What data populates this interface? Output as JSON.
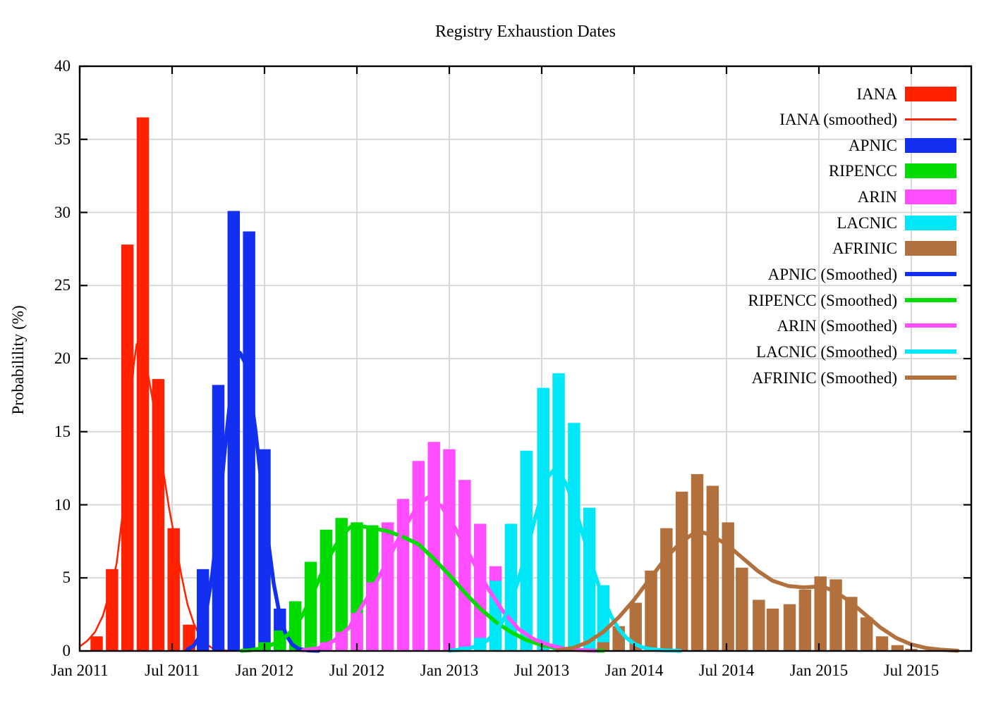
{
  "chart_data": {
    "type": "bar",
    "title": "Registry Exhaustion Dates",
    "ylabel": "Probabilility (%)",
    "x_unit": "months since Jan 2011",
    "ylim": [
      0,
      40
    ],
    "y_tick_step": 5,
    "y_ticks": [
      0,
      5,
      10,
      15,
      20,
      25,
      30,
      35,
      40
    ],
    "x_ticks": [
      {
        "m": 0,
        "label": "Jan 2011"
      },
      {
        "m": 6,
        "label": "Jul 2011"
      },
      {
        "m": 12,
        "label": "Jan 2012"
      },
      {
        "m": 18,
        "label": "Jul 2012"
      },
      {
        "m": 24,
        "label": "Jan 2013"
      },
      {
        "m": 30,
        "label": "Jul 2013"
      },
      {
        "m": 36,
        "label": "Jan 2014"
      },
      {
        "m": 42,
        "label": "Jul 2014"
      },
      {
        "m": 48,
        "label": "Jan 2015"
      },
      {
        "m": 54,
        "label": "Jul 2015"
      }
    ],
    "grid": true,
    "legend_position": "top-right-inside",
    "bar_width_months": 0.8,
    "colors": {
      "IANA": "#ff2100",
      "APNIC": "#1330f0",
      "RIPENCC": "#00dc00",
      "ARIN": "#ff4dff",
      "LACNIC": "#00e7f7",
      "AFRINIC": "#b2703d",
      "grid": "#d4d4d4",
      "frame": "#000000"
    },
    "series": [
      {
        "name": "IANA",
        "kind": "bars",
        "color": "#ff2100",
        "bars": [
          [
            1.1,
            1.0
          ],
          [
            2.1,
            5.6
          ],
          [
            3.1,
            27.8
          ],
          [
            4.1,
            36.5
          ],
          [
            5.1,
            18.6
          ],
          [
            6.1,
            8.4
          ],
          [
            7.1,
            1.8
          ]
        ]
      },
      {
        "name": "IANA (smoothed)",
        "kind": "line",
        "color": "#ff2100",
        "line_width": 2.5,
        "points": [
          [
            0,
            0.3
          ],
          [
            0.5,
            0.7
          ],
          [
            1,
            1.3
          ],
          [
            1.5,
            2.4
          ],
          [
            2,
            4.2
          ],
          [
            2.4,
            6.0
          ],
          [
            2.8,
            9.5
          ],
          [
            3.2,
            15.0
          ],
          [
            3.5,
            19.5
          ],
          [
            3.7,
            21.0
          ],
          [
            4.0,
            20.6
          ],
          [
            4.3,
            19.7
          ],
          [
            4.6,
            18.0
          ],
          [
            5.0,
            15.5
          ],
          [
            5.4,
            12.5
          ],
          [
            5.8,
            9.8
          ],
          [
            6.2,
            7.5
          ],
          [
            6.6,
            5.2
          ],
          [
            7.0,
            3.2
          ],
          [
            7.4,
            1.9
          ],
          [
            7.8,
            1.0
          ],
          [
            8.2,
            0.5
          ],
          [
            8.6,
            0.2
          ],
          [
            9.0,
            0.1
          ],
          [
            9.5,
            0.04
          ],
          [
            10.5,
            0.01
          ]
        ]
      },
      {
        "name": "APNIC",
        "kind": "bars",
        "color": "#1330f0",
        "bars": [
          [
            8.0,
            5.6
          ],
          [
            9.0,
            18.2
          ],
          [
            10.0,
            30.1
          ],
          [
            11.0,
            28.7
          ],
          [
            12.0,
            13.8
          ],
          [
            13.0,
            2.9
          ],
          [
            14.0,
            0.5
          ]
        ]
      },
      {
        "name": "RIPENCC",
        "kind": "bars",
        "color": "#00dc00",
        "bars": [
          [
            12.0,
            0.6
          ],
          [
            13.0,
            1.4
          ],
          [
            14.0,
            3.4
          ],
          [
            15.0,
            6.1
          ],
          [
            16.0,
            8.3
          ],
          [
            17.0,
            9.1
          ],
          [
            18.0,
            8.8
          ],
          [
            19.0,
            8.6
          ]
        ]
      },
      {
        "name": "ARIN",
        "kind": "bars",
        "color": "#ff4dff",
        "bars": [
          [
            16.0,
            0.6
          ],
          [
            17.0,
            1.3
          ],
          [
            18.0,
            2.6
          ],
          [
            19.0,
            4.7
          ],
          [
            20.0,
            8.8
          ],
          [
            21.0,
            10.4
          ],
          [
            22.0,
            13.0
          ],
          [
            23.0,
            14.3
          ],
          [
            24.0,
            13.8
          ],
          [
            25.0,
            11.7
          ],
          [
            26.0,
            8.7
          ],
          [
            27.0,
            5.8
          ]
        ]
      },
      {
        "name": "LACNIC",
        "kind": "bars",
        "color": "#00e7f7",
        "bars": [
          [
            25.0,
            0.3
          ],
          [
            26.0,
            0.9
          ],
          [
            27.0,
            4.8
          ],
          [
            28.0,
            8.7
          ],
          [
            29.0,
            13.7
          ],
          [
            30.1,
            18.0
          ],
          [
            31.1,
            19.0
          ],
          [
            32.1,
            15.6
          ],
          [
            33.1,
            9.8
          ],
          [
            34.0,
            4.5
          ],
          [
            35.0,
            0.8
          ]
        ]
      },
      {
        "name": "AFRINIC",
        "kind": "bars",
        "color": "#b2703d",
        "bars": [
          [
            34.0,
            0.6
          ],
          [
            35.0,
            1.7
          ],
          [
            36.1,
            3.3
          ],
          [
            37.1,
            5.5
          ],
          [
            38.1,
            8.4
          ],
          [
            39.1,
            10.9
          ],
          [
            40.1,
            12.1
          ],
          [
            41.1,
            11.3
          ],
          [
            42.1,
            8.8
          ],
          [
            43.0,
            5.7
          ],
          [
            44.1,
            3.5
          ],
          [
            45.0,
            2.9
          ],
          [
            46.1,
            3.2
          ],
          [
            47.1,
            4.2
          ],
          [
            48.1,
            5.1
          ],
          [
            49.1,
            4.9
          ],
          [
            50.1,
            3.7
          ],
          [
            51.1,
            2.3
          ],
          [
            52.1,
            1.0
          ],
          [
            53.1,
            0.4
          ],
          [
            54.0,
            0.15
          ]
        ]
      },
      {
        "name": "APNIC (Smoothed)",
        "kind": "line",
        "color": "#1330f0",
        "line_width": 5.5,
        "points": [
          [
            7.0,
            0.1
          ],
          [
            7.4,
            0.35
          ],
          [
            7.8,
            1.0
          ],
          [
            8.2,
            2.6
          ],
          [
            8.6,
            5.2
          ],
          [
            9.0,
            9.0
          ],
          [
            9.4,
            13.5
          ],
          [
            9.8,
            17.5
          ],
          [
            10.1,
            19.6
          ],
          [
            10.4,
            20.4
          ],
          [
            10.7,
            19.8
          ],
          [
            11.0,
            18.3
          ],
          [
            11.4,
            15.2
          ],
          [
            11.8,
            11.5
          ],
          [
            12.2,
            7.8
          ],
          [
            12.6,
            4.6
          ],
          [
            13.0,
            2.4
          ],
          [
            13.4,
            1.1
          ],
          [
            13.8,
            0.45
          ],
          [
            14.2,
            0.15
          ],
          [
            14.8,
            0.04
          ],
          [
            15.5,
            0.01
          ]
        ]
      },
      {
        "name": "RIPENCC (Smoothed)",
        "kind": "line",
        "color": "#00dc00",
        "line_width": 5.5,
        "points": [
          [
            10.5,
            0.02
          ],
          [
            11,
            0.05
          ],
          [
            12,
            0.2
          ],
          [
            13,
            0.7
          ],
          [
            13.5,
            1.1
          ],
          [
            14,
            1.7
          ],
          [
            14.5,
            2.5
          ],
          [
            15,
            3.6
          ],
          [
            15.5,
            4.8
          ],
          [
            16,
            6.0
          ],
          [
            16.5,
            7.0
          ],
          [
            17,
            7.9
          ],
          [
            17.6,
            8.5
          ],
          [
            18.5,
            8.5
          ],
          [
            19,
            8.4
          ],
          [
            20,
            8.2
          ],
          [
            21,
            7.8
          ],
          [
            22,
            7.3
          ],
          [
            23,
            6.3
          ],
          [
            24,
            5.2
          ],
          [
            25,
            4.0
          ],
          [
            26,
            2.9
          ],
          [
            27,
            2.0
          ],
          [
            28,
            1.3
          ],
          [
            29,
            0.75
          ],
          [
            30,
            0.4
          ],
          [
            31,
            0.2
          ],
          [
            32,
            0.1
          ],
          [
            33,
            0.04
          ],
          [
            34,
            0.02
          ]
        ]
      },
      {
        "name": "ARIN (Smoothed)",
        "kind": "line",
        "color": "#ff4dff",
        "line_width": 5.5,
        "points": [
          [
            14.5,
            0.05
          ],
          [
            15.5,
            0.2
          ],
          [
            16.5,
            0.7
          ],
          [
            17.5,
            1.6
          ],
          [
            18,
            2.5
          ],
          [
            19,
            4.2
          ],
          [
            20,
            6.2
          ],
          [
            21,
            8.3
          ],
          [
            22,
            10.0
          ],
          [
            22.6,
            10.5
          ],
          [
            23.5,
            9.9
          ],
          [
            24.5,
            8.2
          ],
          [
            25.5,
            6.2
          ],
          [
            26.5,
            4.3
          ],
          [
            27.5,
            2.7
          ],
          [
            28.5,
            1.5
          ],
          [
            29.5,
            0.8
          ],
          [
            30.5,
            0.4
          ],
          [
            31.5,
            0.15
          ],
          [
            32.5,
            0.06
          ],
          [
            33.5,
            0.02
          ]
        ]
      },
      {
        "name": "LACNIC (Smoothed)",
        "kind": "line",
        "color": "#00e7f7",
        "line_width": 5.5,
        "points": [
          [
            24,
            0.03
          ],
          [
            25,
            0.1
          ],
          [
            26,
            0.4
          ],
          [
            26.5,
            0.75
          ],
          [
            27,
            1.3
          ],
          [
            27.5,
            2.1
          ],
          [
            28,
            3.3
          ],
          [
            28.5,
            4.9
          ],
          [
            29,
            6.8
          ],
          [
            29.5,
            8.8
          ],
          [
            30,
            10.7
          ],
          [
            30.4,
            11.9
          ],
          [
            30.8,
            12.4
          ],
          [
            31.2,
            12.1
          ],
          [
            31.6,
            11.4
          ],
          [
            32,
            10.3
          ],
          [
            32.5,
            8.6
          ],
          [
            33,
            6.8
          ],
          [
            33.5,
            5.1
          ],
          [
            34,
            3.6
          ],
          [
            34.5,
            2.4
          ],
          [
            35,
            1.5
          ],
          [
            35.5,
            0.9
          ],
          [
            36,
            0.5
          ],
          [
            36.5,
            0.27
          ],
          [
            37,
            0.13
          ],
          [
            38,
            0.04
          ],
          [
            39,
            0.01
          ]
        ]
      },
      {
        "name": "AFRINIC (Smoothed)",
        "kind": "line",
        "color": "#b2703d",
        "line_width": 5.5,
        "points": [
          [
            31,
            0.05
          ],
          [
            32,
            0.2
          ],
          [
            33,
            0.6
          ],
          [
            34,
            1.3
          ],
          [
            35,
            2.3
          ],
          [
            36,
            3.5
          ],
          [
            37,
            4.9
          ],
          [
            38,
            6.3
          ],
          [
            39,
            7.4
          ],
          [
            39.8,
            8.0
          ],
          [
            40.5,
            8.1
          ],
          [
            41,
            7.9
          ],
          [
            42,
            7.3
          ],
          [
            43,
            6.4
          ],
          [
            44,
            5.5
          ],
          [
            45,
            4.8
          ],
          [
            46,
            4.45
          ],
          [
            47,
            4.35
          ],
          [
            47.8,
            4.4
          ],
          [
            48.5,
            4.3
          ],
          [
            49,
            4.1
          ],
          [
            50,
            3.4
          ],
          [
            51,
            2.5
          ],
          [
            52,
            1.6
          ],
          [
            53,
            0.9
          ],
          [
            54,
            0.45
          ],
          [
            55,
            0.2
          ],
          [
            56,
            0.08
          ],
          [
            57,
            0.02
          ]
        ]
      }
    ],
    "legend": [
      {
        "label": "IANA",
        "swatch": "box",
        "color": "#ff2100"
      },
      {
        "label": "IANA (smoothed)",
        "swatch": "line",
        "color": "#ff2100",
        "thin": true
      },
      {
        "label": "APNIC",
        "swatch": "box",
        "color": "#1330f0"
      },
      {
        "label": "RIPENCC",
        "swatch": "box",
        "color": "#00dc00"
      },
      {
        "label": "ARIN",
        "swatch": "box",
        "color": "#ff4dff"
      },
      {
        "label": "LACNIC",
        "swatch": "box",
        "color": "#00e7f7"
      },
      {
        "label": "AFRINIC",
        "swatch": "box",
        "color": "#b2703d"
      },
      {
        "label": "APNIC (Smoothed)",
        "swatch": "line",
        "color": "#1330f0"
      },
      {
        "label": "RIPENCC (Smoothed)",
        "swatch": "line",
        "color": "#00dc00"
      },
      {
        "label": "ARIN (Smoothed)",
        "swatch": "line",
        "color": "#ff4dff"
      },
      {
        "label": "LACNIC (Smoothed)",
        "swatch": "line",
        "color": "#00e7f7"
      },
      {
        "label": "AFRINIC (Smoothed)",
        "swatch": "line",
        "color": "#b2703d"
      }
    ]
  }
}
